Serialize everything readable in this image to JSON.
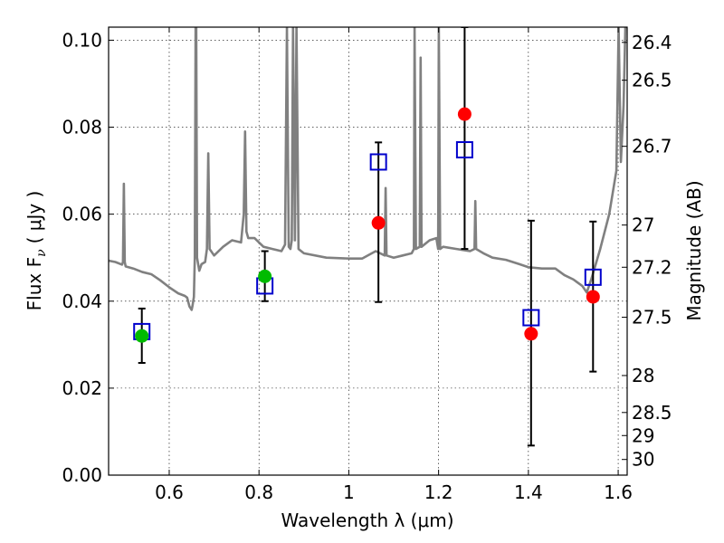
{
  "chart_data": {
    "type": "scatter",
    "xlabel": "Wavelength  λ (μm)",
    "ylabel": "Flux  F",
    "ylabel_subscript": "ν",
    "ylabel_unit": "( μJy )",
    "y2label": "Magnitude (AB)",
    "xlim": [
      0.465,
      1.62
    ],
    "ylim": [
      0.0,
      0.103
    ],
    "grid": true,
    "x_ticks": [
      0.6,
      0.8,
      1.0,
      1.2,
      1.4,
      1.6
    ],
    "x_tick_labels": [
      "0.6",
      "0.8",
      "1",
      "1.2",
      "1.4",
      "1.6"
    ],
    "y_ticks": [
      0.0,
      0.02,
      0.04,
      0.06,
      0.08,
      0.1
    ],
    "y_tick_labels": [
      "0.00",
      "0.02",
      "0.04",
      "0.06",
      "0.08",
      "0.10"
    ],
    "y2_ticks": [
      {
        "flux": 0.0995,
        "label": "26.4"
      },
      {
        "flux": 0.0908,
        "label": "26.5"
      },
      {
        "flux": 0.0756,
        "label": "26.7"
      },
      {
        "flux": 0.0575,
        "label": "27"
      },
      {
        "flux": 0.0478,
        "label": "27.2"
      },
      {
        "flux": 0.0363,
        "label": "27.5"
      },
      {
        "flux": 0.0229,
        "label": "28"
      },
      {
        "flux": 0.0144,
        "label": "28.5"
      },
      {
        "flux": 0.0091,
        "label": "29"
      },
      {
        "flux": 0.0036,
        "label": "30"
      }
    ],
    "series": [
      {
        "kind": "model_spectrum",
        "color": "#808080",
        "points": [
          [
            0.465,
            0.0493
          ],
          [
            0.48,
            0.049
          ],
          [
            0.495,
            0.0484
          ],
          [
            0.497,
            0.049
          ],
          [
            0.499,
            0.067
          ],
          [
            0.501,
            0.049
          ],
          [
            0.503,
            0.048
          ],
          [
            0.52,
            0.0475
          ],
          [
            0.54,
            0.0467
          ],
          [
            0.56,
            0.0462
          ],
          [
            0.58,
            0.0448
          ],
          [
            0.6,
            0.0432
          ],
          [
            0.62,
            0.0418
          ],
          [
            0.635,
            0.0412
          ],
          [
            0.64,
            0.0408
          ],
          [
            0.645,
            0.0388
          ],
          [
            0.65,
            0.038
          ],
          [
            0.652,
            0.039
          ],
          [
            0.655,
            0.041
          ],
          [
            0.657,
            0.05
          ],
          [
            0.6588,
            0.103
          ],
          [
            0.6602,
            0.103
          ],
          [
            0.662,
            0.05
          ],
          [
            0.667,
            0.047
          ],
          [
            0.672,
            0.0485
          ],
          [
            0.68,
            0.049
          ],
          [
            0.684,
            0.052
          ],
          [
            0.687,
            0.074
          ],
          [
            0.69,
            0.052
          ],
          [
            0.7,
            0.0505
          ],
          [
            0.72,
            0.0525
          ],
          [
            0.74,
            0.054
          ],
          [
            0.76,
            0.0535
          ],
          [
            0.766,
            0.06
          ],
          [
            0.769,
            0.079
          ],
          [
            0.772,
            0.056
          ],
          [
            0.776,
            0.0545
          ],
          [
            0.79,
            0.0545
          ],
          [
            0.8,
            0.0535
          ],
          [
            0.81,
            0.0525
          ],
          [
            0.83,
            0.052
          ],
          [
            0.85,
            0.0515
          ],
          [
            0.858,
            0.053
          ],
          [
            0.8622,
            0.103
          ],
          [
            0.8662,
            0.0525
          ],
          [
            0.87,
            0.052
          ],
          [
            0.873,
            0.054
          ],
          [
            0.8758,
            0.103
          ],
          [
            0.88,
            0.054
          ],
          [
            0.8835,
            0.103
          ],
          [
            0.888,
            0.052
          ],
          [
            0.9,
            0.051
          ],
          [
            0.95,
            0.05
          ],
          [
            1.0,
            0.0498
          ],
          [
            1.03,
            0.0498
          ],
          [
            1.06,
            0.0515
          ],
          [
            1.08,
            0.0505
          ],
          [
            1.082,
            0.066
          ],
          [
            1.084,
            0.0505
          ],
          [
            1.1,
            0.05
          ],
          [
            1.12,
            0.0505
          ],
          [
            1.14,
            0.051
          ],
          [
            1.145,
            0.052
          ],
          [
            1.1465,
            0.103
          ],
          [
            1.1495,
            0.052
          ],
          [
            1.158,
            0.0525
          ],
          [
            1.16,
            0.096
          ],
          [
            1.162,
            0.0525
          ],
          [
            1.18,
            0.054
          ],
          [
            1.195,
            0.0545
          ],
          [
            1.199,
            0.052
          ],
          [
            1.2005,
            0.103
          ],
          [
            1.2035,
            0.052
          ],
          [
            1.21,
            0.0525
          ],
          [
            1.24,
            0.052
          ],
          [
            1.27,
            0.0515
          ],
          [
            1.28,
            0.052
          ],
          [
            1.2818,
            0.063
          ],
          [
            1.2836,
            0.052
          ],
          [
            1.3,
            0.051
          ],
          [
            1.32,
            0.05
          ],
          [
            1.35,
            0.0495
          ],
          [
            1.38,
            0.0485
          ],
          [
            1.4,
            0.0478
          ],
          [
            1.43,
            0.0475
          ],
          [
            1.46,
            0.0475
          ],
          [
            1.48,
            0.046
          ],
          [
            1.5,
            0.045
          ],
          [
            1.52,
            0.0435
          ],
          [
            1.53,
            0.042
          ],
          [
            1.54,
            0.045
          ],
          [
            1.56,
            0.052
          ],
          [
            1.58,
            0.06
          ],
          [
            1.596,
            0.07
          ],
          [
            1.601,
            0.103
          ],
          [
            1.606,
            0.072
          ],
          [
            1.612,
            0.085
          ],
          [
            1.616,
            0.103
          ],
          [
            1.62,
            0.103
          ]
        ]
      },
      {
        "kind": "observed_with_error",
        "color": "#ff0000",
        "points": [
          {
            "x": 1.066,
            "y": 0.058,
            "err_low": 0.0398,
            "err_high": 0.0765
          },
          {
            "x": 1.258,
            "y": 0.083,
            "err_low": 0.052,
            "err_high": 0.103
          },
          {
            "x": 1.406,
            "y": 0.0325,
            "err_low": 0.0068,
            "err_high": 0.0585
          },
          {
            "x": 1.544,
            "y": 0.041,
            "err_low": 0.0238,
            "err_high": 0.0583
          }
        ]
      },
      {
        "kind": "observed_with_error",
        "color": "#00bb00",
        "points": [
          {
            "x": 0.539,
            "y": 0.032,
            "err_low": 0.0258,
            "err_high": 0.0383
          },
          {
            "x": 0.813,
            "y": 0.0457,
            "err_low": 0.04,
            "err_high": 0.0515
          }
        ]
      },
      {
        "kind": "model_photometry",
        "color": "#0000cc",
        "points": [
          {
            "x": 0.539,
            "y": 0.033
          },
          {
            "x": 0.813,
            "y": 0.0435
          },
          {
            "x": 1.066,
            "y": 0.072
          },
          {
            "x": 1.258,
            "y": 0.0748
          },
          {
            "x": 1.406,
            "y": 0.0362
          },
          {
            "x": 1.544,
            "y": 0.0455
          }
        ]
      }
    ]
  }
}
